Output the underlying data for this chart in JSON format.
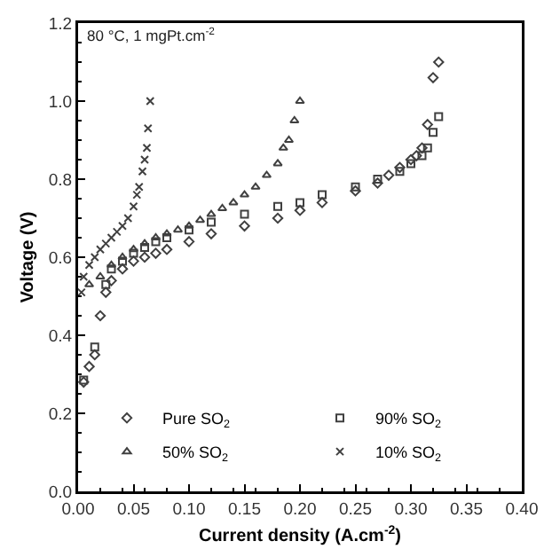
{
  "chart_data": {
    "type": "scatter",
    "title": "80 °C, 1 mgPt.cm$^{-2}$",
    "xlabel": "Current density (A.cm$^{-2}$)",
    "ylabel": "Voltage (V)",
    "xlim": [
      0,
      0.4
    ],
    "ylim": [
      0,
      1.2
    ],
    "xticks": [
      {
        "value": 0,
        "label": "0.00"
      },
      {
        "value": 0.05,
        "label": "0.05"
      },
      {
        "value": 0.1,
        "label": "0.10"
      },
      {
        "value": 0.15,
        "label": "0.15"
      },
      {
        "value": 0.2,
        "label": "0.20"
      },
      {
        "value": 0.25,
        "label": "0.25"
      },
      {
        "value": 0.3,
        "label": "0.30"
      },
      {
        "value": 0.35,
        "label": "0.35"
      },
      {
        "value": 0.4,
        "label": "0.40"
      }
    ],
    "yticks": [
      {
        "value": 0,
        "label": "0.0"
      },
      {
        "value": 0.2,
        "label": "0.2"
      },
      {
        "value": 0.4,
        "label": "0.4"
      },
      {
        "value": 0.6,
        "label": "0.6"
      },
      {
        "value": 0.8,
        "label": "0.8"
      },
      {
        "value": 1,
        "label": "1.0"
      },
      {
        "value": 1.2,
        "label": "1.2"
      }
    ],
    "grid": false,
    "legend": "bottom left",
    "series": [
      {
        "name": "Pure SO$_{2}$",
        "color": "#404040",
        "marker": "diamond",
        "x": [
          0.005,
          0.01,
          0.015,
          0.02,
          0.025,
          0.03,
          0.04,
          0.05,
          0.06,
          0.07,
          0.08,
          0.1,
          0.12,
          0.15,
          0.18,
          0.2,
          0.22,
          0.25,
          0.27,
          0.28,
          0.29,
          0.3,
          0.305,
          0.31,
          0.315,
          0.32,
          0.325
        ],
        "values": [
          0.28,
          0.32,
          0.35,
          0.45,
          0.51,
          0.54,
          0.57,
          0.59,
          0.6,
          0.61,
          0.62,
          0.64,
          0.66,
          0.68,
          0.7,
          0.72,
          0.74,
          0.77,
          0.79,
          0.81,
          0.83,
          0.85,
          0.86,
          0.88,
          0.94,
          1.06,
          1.1
        ]
      },
      {
        "name": "90% SO$_{2}$",
        "color": "#404040",
        "marker": "square",
        "x": [
          0.005,
          0.015,
          0.025,
          0.03,
          0.04,
          0.05,
          0.06,
          0.07,
          0.08,
          0.1,
          0.12,
          0.15,
          0.18,
          0.2,
          0.22,
          0.25,
          0.27,
          0.28,
          0.29,
          0.3,
          0.31,
          0.315,
          0.32,
          0.325
        ],
        "values": [
          0.285,
          0.37,
          0.53,
          0.57,
          0.59,
          0.61,
          0.625,
          0.64,
          0.65,
          0.67,
          0.69,
          0.71,
          0.73,
          0.74,
          0.76,
          0.78,
          0.8,
          null,
          0.82,
          0.84,
          0.86,
          0.88,
          0.92,
          0.96
        ]
      },
      {
        "name": "50% SO$_{2}$",
        "color": "#404040",
        "marker": "triangle",
        "x": [
          0.01,
          0.02,
          0.03,
          0.04,
          0.05,
          0.06,
          0.07,
          0.08,
          0.09,
          0.1,
          0.11,
          0.12,
          0.13,
          0.14,
          0.15,
          0.16,
          0.17,
          0.18,
          0.185,
          0.19,
          0.195,
          0.2
        ],
        "values": [
          0.53,
          0.55,
          0.58,
          0.6,
          0.62,
          0.635,
          0.65,
          0.66,
          0.67,
          0.68,
          0.695,
          0.71,
          0.725,
          0.74,
          0.76,
          0.78,
          0.81,
          0.84,
          0.88,
          0.9,
          0.95,
          1.0
        ]
      },
      {
        "name": "10% SO$_{2}$",
        "color": "#404040",
        "marker": "cross",
        "x": [
          0.003,
          0.005,
          0.01,
          0.015,
          0.02,
          0.025,
          0.03,
          0.035,
          0.04,
          0.045,
          0.05,
          0.053,
          0.055,
          0.058,
          0.06,
          0.062,
          0.063,
          0.065
        ],
        "values": [
          0.51,
          0.55,
          0.58,
          0.6,
          0.62,
          0.635,
          0.65,
          0.665,
          0.68,
          0.7,
          0.73,
          0.76,
          0.78,
          0.82,
          0.85,
          0.88,
          0.93,
          1.0
        ]
      }
    ]
  }
}
